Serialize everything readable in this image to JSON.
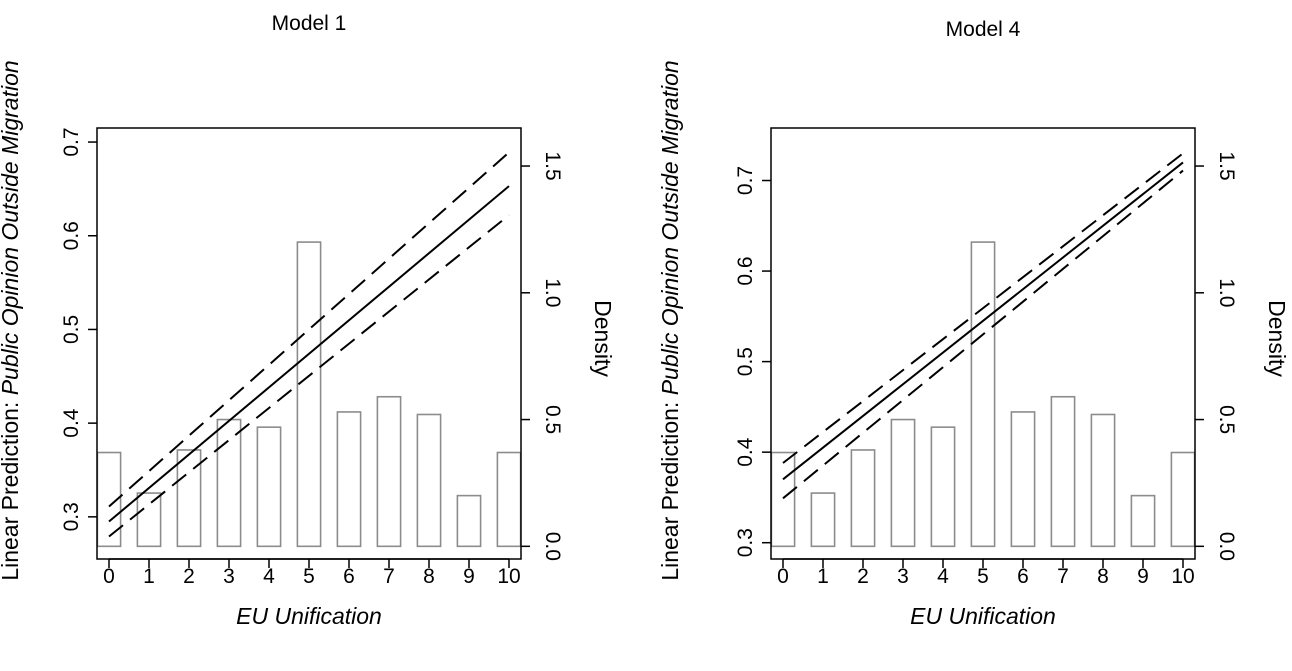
{
  "chart_data": [
    {
      "type": "bar",
      "title": "Model 1",
      "xlabel": "EU Unification",
      "ylabel_prefix": "Linear Prediction: ",
      "ylabel_italic": "Public Opinion Outside Migration",
      "y2label": "Density",
      "x_ticks": [
        0,
        1,
        2,
        3,
        4,
        5,
        6,
        7,
        8,
        9,
        10
      ],
      "x_tick_labels": [
        "0",
        "1",
        "2",
        "3",
        "4",
        "5",
        "6",
        "7",
        "8",
        "9",
        "10"
      ],
      "xlim": [
        -0.3,
        10.3
      ],
      "ylim": [
        0.255,
        0.715
      ],
      "y_ticks": [
        0.3,
        0.4,
        0.5,
        0.6,
        0.7
      ],
      "y_tick_labels": [
        "0.3",
        "0.4",
        "0.5",
        "0.6",
        "0.7"
      ],
      "y2lim": [
        -0.05,
        1.65
      ],
      "y2_ticks": [
        0.0,
        0.5,
        1.0,
        1.5
      ],
      "y2_tick_labels": [
        "0.0",
        "0.5",
        "1.0",
        "1.5"
      ],
      "bar_centers": [
        0,
        1,
        2,
        3,
        4,
        5,
        6,
        7,
        8,
        9,
        10
      ],
      "bar_density": [
        0.37,
        0.21,
        0.38,
        0.5,
        0.47,
        1.2,
        0.53,
        0.59,
        0.52,
        0.2,
        0.37
      ],
      "prediction_line": {
        "x": [
          0,
          10
        ],
        "y": [
          0.295,
          0.653
        ]
      },
      "ci_upper": {
        "x": [
          0,
          10
        ],
        "y": [
          0.311,
          0.689
        ]
      },
      "ci_lower": {
        "x": [
          0,
          10
        ],
        "y": [
          0.279,
          0.622
        ]
      }
    },
    {
      "type": "bar",
      "title": "Model 4",
      "xlabel": "EU Unification",
      "ylabel_prefix": "Linear Prediction: ",
      "ylabel_italic": "Public Opinion Outside Migration",
      "y2label": "Density",
      "x_ticks": [
        0,
        1,
        2,
        3,
        4,
        5,
        6,
        7,
        8,
        9,
        10
      ],
      "x_tick_labels": [
        "0",
        "1",
        "2",
        "3",
        "4",
        "5",
        "6",
        "7",
        "8",
        "9",
        "10"
      ],
      "xlim": [
        -0.3,
        10.3
      ],
      "ylim": [
        0.282,
        0.758
      ],
      "y_ticks": [
        0.3,
        0.4,
        0.5,
        0.6,
        0.7
      ],
      "y_tick_labels": [
        "0.3",
        "0.4",
        "0.5",
        "0.6",
        "0.7"
      ],
      "y2lim": [
        -0.05,
        1.65
      ],
      "y2_ticks": [
        0.0,
        0.5,
        1.0,
        1.5
      ],
      "y2_tick_labels": [
        "0.0",
        "0.5",
        "1.0",
        "1.5"
      ],
      "bar_centers": [
        0,
        1,
        2,
        3,
        4,
        5,
        6,
        7,
        8,
        9,
        10
      ],
      "bar_density": [
        0.37,
        0.21,
        0.38,
        0.5,
        0.47,
        1.2,
        0.53,
        0.59,
        0.52,
        0.2,
        0.37
      ],
      "prediction_line": {
        "x": [
          0,
          10
        ],
        "y": [
          0.37,
          0.72
        ]
      },
      "ci_upper": {
        "x": [
          0,
          10
        ],
        "y": [
          0.388,
          0.73
        ]
      },
      "ci_lower": {
        "x": [
          0,
          10
        ],
        "y": [
          0.349,
          0.711
        ]
      }
    }
  ]
}
